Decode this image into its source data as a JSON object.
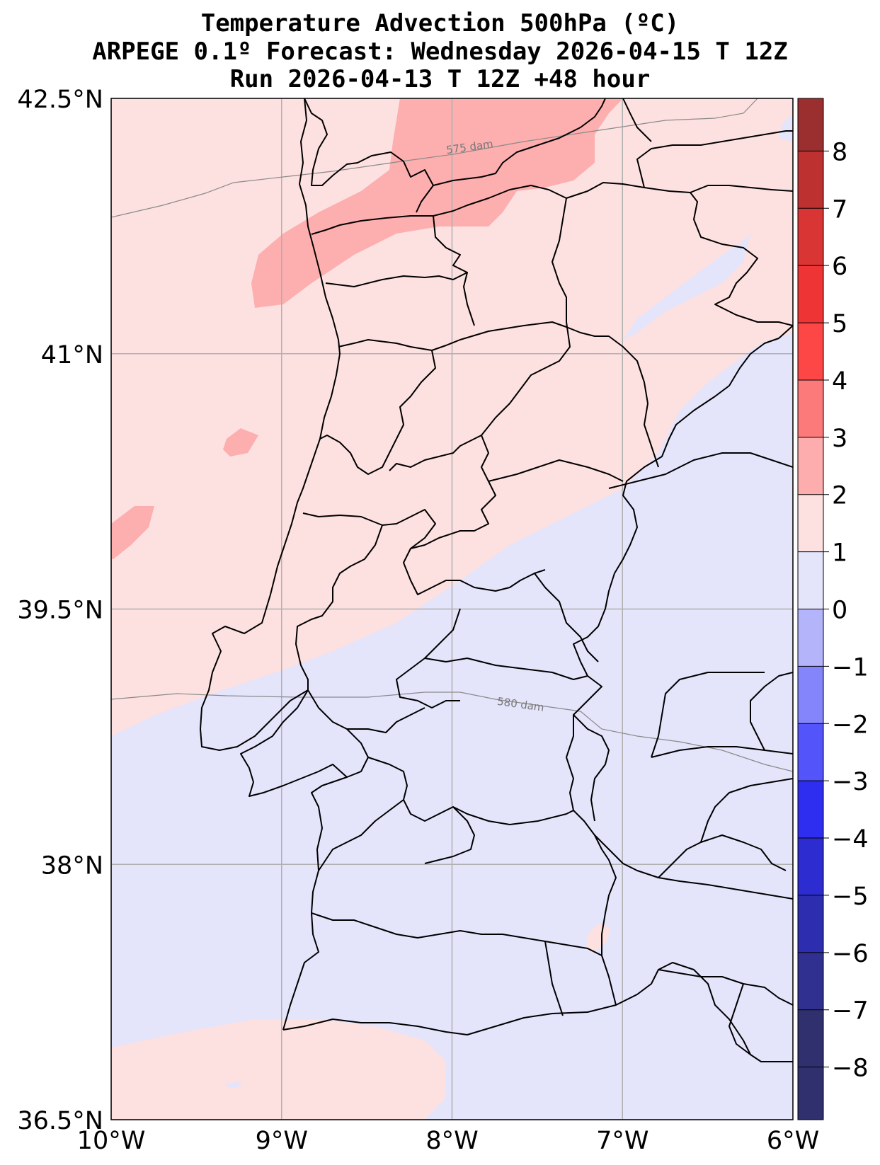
{
  "title": {
    "line1": "Temperature Advection  500hPa (ºC)",
    "line2": "ARPEGE 0.1º Forecast: Wednesday 2026-04-15 T 12Z",
    "line3": "Run 2026-04-13 T 12Z +48 hour"
  },
  "map": {
    "lon_range": [
      -10,
      -6
    ],
    "lat_range": [
      36.5,
      42.5
    ],
    "x_ticks": [
      {
        "lon": -10,
        "label": "10°W"
      },
      {
        "lon": -9,
        "label": "9°W"
      },
      {
        "lon": -8,
        "label": "8°W"
      },
      {
        "lon": -7,
        "label": "7°W"
      },
      {
        "lon": -6,
        "label": "6°W"
      }
    ],
    "y_ticks": [
      {
        "lat": 42.5,
        "label": "42.5°N"
      },
      {
        "lat": 41,
        "label": "41°N"
      },
      {
        "lat": 39.5,
        "label": "39.5°N"
      },
      {
        "lat": 38,
        "label": "38°N"
      },
      {
        "lat": 36.5,
        "label": "36.5°N"
      }
    ],
    "grid": true,
    "contours": [
      {
        "label": "575 dam",
        "label_lon": -7.86,
        "label_lat": 42.22
      },
      {
        "label": "580 dam",
        "label_lon": -7.57,
        "label_lat": 39.27
      }
    ],
    "colors": {
      "warm_0_1": "#fde0e0",
      "warm_1_2": "#fdaeae",
      "cold_0_1": "#e4e4fb",
      "coast": "#000000",
      "gridline": "#b0b0b0",
      "geopotential": "#8a8a8a"
    }
  },
  "colorbar": {
    "levels": [
      {
        "value": "8"
      },
      {
        "value": "7"
      },
      {
        "value": "6"
      },
      {
        "value": "5"
      },
      {
        "value": "4"
      },
      {
        "value": "3"
      },
      {
        "value": "2"
      },
      {
        "value": "1"
      },
      {
        "value": "0"
      },
      {
        "value": "−1"
      },
      {
        "value": "−2"
      },
      {
        "value": "−3"
      },
      {
        "value": "−4"
      },
      {
        "value": "−5"
      },
      {
        "value": "−6"
      },
      {
        "value": "−7"
      },
      {
        "value": "−8"
      }
    ],
    "colors": [
      "#9b2f2f",
      "#bd3131",
      "#d93535",
      "#ee3434",
      "#fd4747",
      "#fd7a7a",
      "#fdadad",
      "#fde0e0",
      "#e4e4fb",
      "#b4b4fb",
      "#8484fb",
      "#5454fb",
      "#2e2ef0",
      "#2c2cd0",
      "#2d2daf",
      "#303090",
      "#30306e"
    ]
  }
}
